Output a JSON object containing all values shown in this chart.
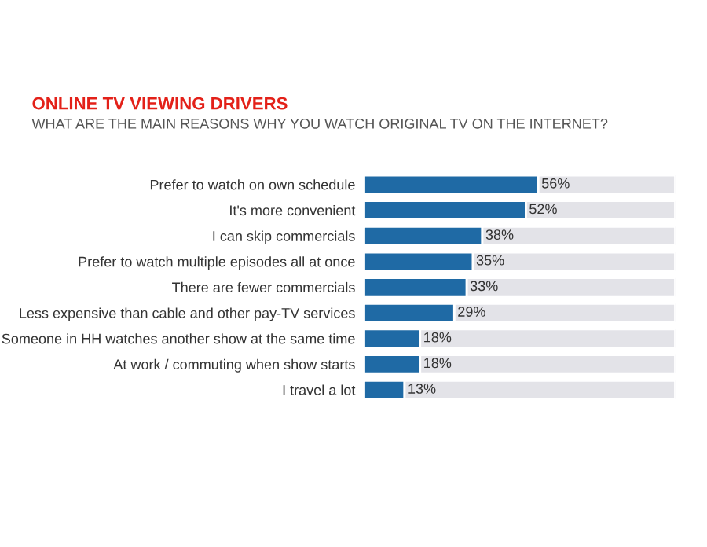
{
  "chart_data": {
    "type": "bar",
    "orientation": "horizontal",
    "stacked": true,
    "title": "ONLINE TV VIEWING DRIVERS",
    "subtitle": "WHAT ARE THE MAIN REASONS WHY YOU WATCH ORIGINAL TV ON THE INTERNET?",
    "categories": [
      "Prefer to watch on own schedule",
      "It's more convenient",
      "I can skip commercials",
      "Prefer to watch multiple episodes all at once",
      "There are fewer commercials",
      "Less expensive than cable and other pay-TV services",
      "Someone in HH watches another show at the same time",
      "At work / commuting when show starts",
      "I travel a lot"
    ],
    "series": [
      {
        "color": "#1f6aa5",
        "values": [
          56,
          52,
          38,
          35,
          33,
          29,
          18,
          18,
          13
        ],
        "value_labels": [
          "56%",
          "52%",
          "38%",
          "35%",
          "33%",
          "29%",
          "18%",
          "18%",
          "13%"
        ]
      },
      {
        "color": "#e3e3e8",
        "values": [
          44,
          48,
          62,
          65,
          67,
          71,
          82,
          82,
          87
        ]
      }
    ],
    "xlim": [
      0,
      100
    ],
    "tick_labels": false,
    "grid": false,
    "legend": false
  }
}
